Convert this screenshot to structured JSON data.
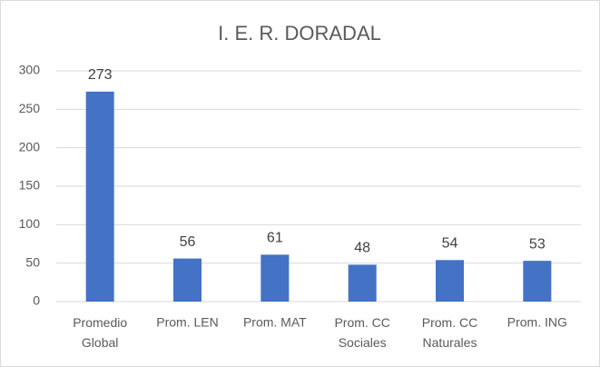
{
  "chart_data": {
    "type": "bar",
    "title": "I. E. R. DORADAL",
    "categories": [
      "Promedio Global",
      "Prom. LEN",
      "Prom. MAT",
      "Prom. CC Sociales",
      "Prom. CC Naturales",
      "Prom. ING"
    ],
    "values": [
      273,
      56,
      61,
      48,
      54,
      53
    ],
    "color": "#4472c4",
    "ylim": [
      0,
      300
    ],
    "yticks": [
      0,
      50,
      100,
      150,
      200,
      250,
      300
    ],
    "grid": true
  }
}
